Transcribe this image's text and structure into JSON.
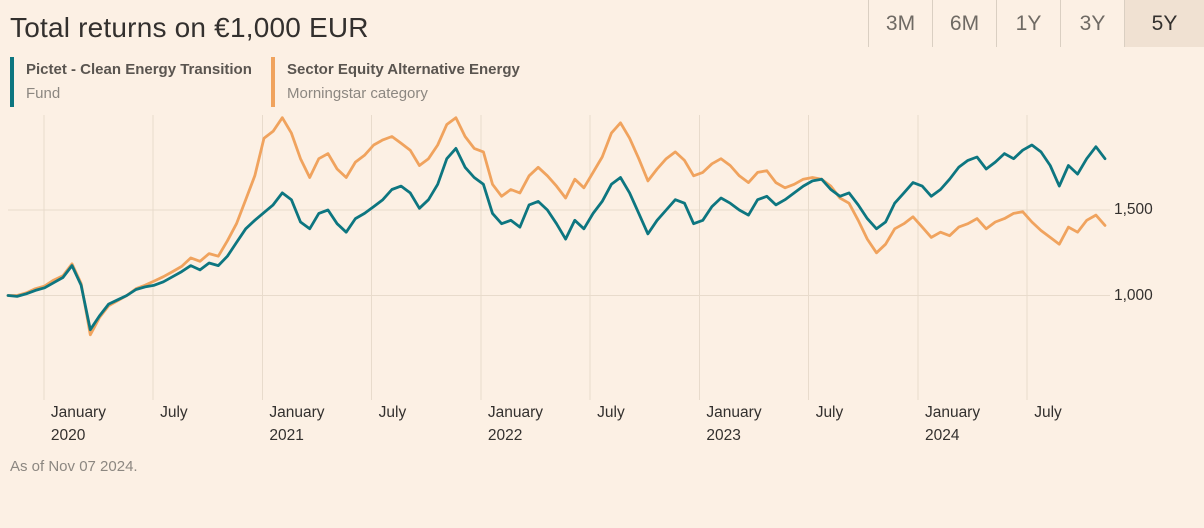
{
  "header": {
    "title": "Total returns on €1,000 EUR",
    "ranges": [
      "3M",
      "6M",
      "1Y",
      "3Y",
      "5Y"
    ],
    "active_range": "5Y"
  },
  "legend": [
    {
      "title": "Pictet - Clean Energy Transition",
      "subtitle": "Fund",
      "color": "#0d7680"
    },
    {
      "title": "Sector Equity Alternative Energy",
      "subtitle": "Morningstar category",
      "color": "#f0a35e"
    }
  ],
  "footer": {
    "as_of": "As of Nov 07 2024."
  },
  "colors": {
    "background": "#fcf0e4",
    "grid": "#e8dbcc",
    "text_dark": "#33302e",
    "text_muted": "#8c8781",
    "range_selected_bg": "#f0e1d2",
    "fund_line": "#0d7680",
    "category_line": "#f0a35e"
  },
  "chart_data": {
    "type": "line",
    "title": "Total returns on €1,000 EUR",
    "start_value": 1000,
    "x_unit": "semi-monthly points from Nov 1 2019 to Nov 7 2024",
    "grid": true,
    "legend_position": "top-left",
    "y_axis": {
      "ticks": [
        {
          "label": "1,500",
          "value": 1500
        },
        {
          "label": "1,000",
          "value": 1000
        }
      ],
      "implied_range": [
        390,
        2060
      ]
    },
    "x_axis": {
      "ticks": [
        {
          "month": "January",
          "year": "2020",
          "t": 2020.0
        },
        {
          "month": "July",
          "year": "",
          "t": 2020.5
        },
        {
          "month": "January",
          "year": "2021",
          "t": 2021.0
        },
        {
          "month": "July",
          "year": "",
          "t": 2021.5
        },
        {
          "month": "January",
          "year": "2022",
          "t": 2022.0
        },
        {
          "month": "July",
          "year": "",
          "t": 2022.5
        },
        {
          "month": "January",
          "year": "2023",
          "t": 2023.0
        },
        {
          "month": "July",
          "year": "",
          "t": 2023.5
        },
        {
          "month": "January",
          "year": "2024",
          "t": 2024.0
        },
        {
          "month": "July",
          "year": "",
          "t": 2024.5
        }
      ]
    },
    "series": [
      {
        "name": "Sector Equity Alternative Energy (Morningstar category)",
        "color": "#f0a35e",
        "values": [
          1000,
          1000,
          1015,
          1040,
          1055,
          1090,
          1115,
          1185,
          1070,
          770,
          870,
          940,
          970,
          1000,
          1040,
          1060,
          1085,
          1110,
          1140,
          1170,
          1220,
          1200,
          1245,
          1230,
          1320,
          1420,
          1560,
          1700,
          1920,
          1960,
          2040,
          1950,
          1800,
          1690,
          1800,
          1830,
          1740,
          1690,
          1780,
          1820,
          1880,
          1910,
          1930,
          1890,
          1850,
          1760,
          1800,
          1880,
          2000,
          2040,
          1930,
          1860,
          1840,
          1650,
          1580,
          1620,
          1600,
          1700,
          1750,
          1700,
          1640,
          1570,
          1680,
          1630,
          1720,
          1810,
          1950,
          2010,
          1920,
          1800,
          1670,
          1740,
          1800,
          1840,
          1790,
          1700,
          1720,
          1770,
          1800,
          1760,
          1700,
          1660,
          1720,
          1730,
          1660,
          1630,
          1650,
          1680,
          1690,
          1680,
          1640,
          1570,
          1540,
          1440,
          1330,
          1250,
          1300,
          1390,
          1420,
          1460,
          1400,
          1340,
          1370,
          1350,
          1400,
          1420,
          1450,
          1390,
          1430,
          1450,
          1480,
          1490,
          1430,
          1380,
          1340,
          1300,
          1400,
          1370,
          1440,
          1470,
          1410
        ]
      },
      {
        "name": "Pictet - Clean Energy Transition (Fund)",
        "color": "#0d7680",
        "values": [
          1000,
          995,
          1010,
          1030,
          1045,
          1075,
          1105,
          1175,
          1060,
          800,
          880,
          950,
          975,
          1000,
          1035,
          1050,
          1060,
          1080,
          1110,
          1140,
          1175,
          1150,
          1190,
          1175,
          1230,
          1310,
          1390,
          1440,
          1485,
          1530,
          1600,
          1560,
          1430,
          1390,
          1480,
          1500,
          1420,
          1370,
          1450,
          1480,
          1520,
          1560,
          1620,
          1640,
          1600,
          1510,
          1560,
          1650,
          1800,
          1860,
          1750,
          1690,
          1650,
          1480,
          1420,
          1440,
          1400,
          1530,
          1550,
          1500,
          1420,
          1330,
          1440,
          1390,
          1480,
          1550,
          1650,
          1690,
          1600,
          1480,
          1360,
          1440,
          1500,
          1560,
          1540,
          1420,
          1440,
          1520,
          1570,
          1540,
          1500,
          1470,
          1560,
          1580,
          1530,
          1560,
          1600,
          1640,
          1670,
          1680,
          1620,
          1580,
          1600,
          1530,
          1450,
          1390,
          1430,
          1540,
          1600,
          1660,
          1640,
          1580,
          1620,
          1680,
          1750,
          1790,
          1810,
          1740,
          1780,
          1830,
          1800,
          1850,
          1880,
          1840,
          1760,
          1640,
          1760,
          1710,
          1800,
          1870,
          1800
        ]
      }
    ]
  }
}
